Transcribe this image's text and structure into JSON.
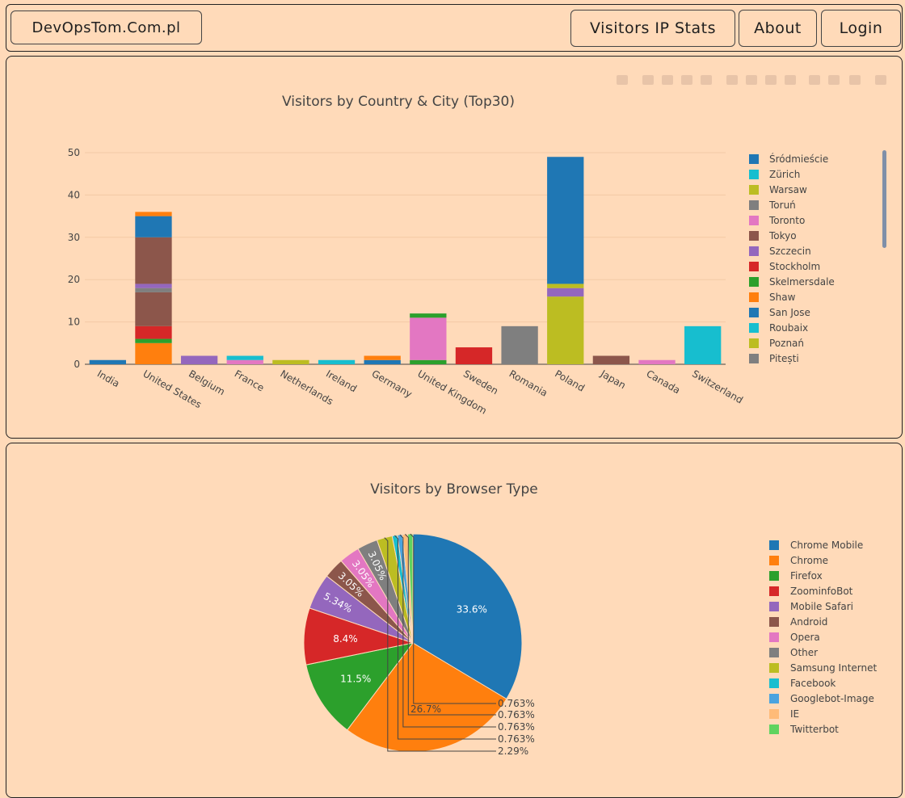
{
  "navbar": {
    "brand": "DevOpsTom.Com.pl",
    "links": [
      "Visitors IP Stats",
      "About",
      "Login"
    ]
  },
  "chart_data": [
    {
      "type": "bar",
      "stacked": true,
      "title": "Visitors by Country & City (Top30)",
      "xlabel": "",
      "ylabel": "",
      "ylim": [
        0,
        53
      ],
      "yticks": [
        0,
        10,
        20,
        30,
        40,
        50
      ],
      "grid": true,
      "legend_position": "right",
      "categories": [
        "India",
        "United States",
        "Belgium",
        "France",
        "Netherlands",
        "Ireland",
        "Germany",
        "United Kingdom",
        "Sweden",
        "Romania",
        "Poland",
        "Japan",
        "Canada",
        "Switzerland"
      ],
      "segments": [
        [
          [
            "#1f77b4",
            1
          ]
        ],
        [
          [
            "#ff7f0e",
            5
          ],
          [
            "#2ca02c",
            1
          ],
          [
            "#d62728",
            3
          ],
          [
            "#8c564b",
            8
          ],
          [
            "#7f7f7f",
            1
          ],
          [
            "#9467bd",
            1
          ],
          [
            "#8c564b",
            11
          ],
          [
            "#1f77b4",
            5
          ],
          [
            "#ff7f0e",
            1
          ]
        ],
        [
          [
            "#9467bd",
            2
          ]
        ],
        [
          [
            "#e377c2",
            1
          ],
          [
            "#17becf",
            1
          ]
        ],
        [
          [
            "#bcbd22",
            1
          ]
        ],
        [
          [
            "#17becf",
            1
          ]
        ],
        [
          [
            "#1f77b4",
            1
          ],
          [
            "#ff7f0e",
            1
          ]
        ],
        [
          [
            "#2ca02c",
            1
          ],
          [
            "#e377c2",
            10
          ],
          [
            "#2ca02c",
            1
          ]
        ],
        [
          [
            "#d62728",
            4
          ]
        ],
        [
          [
            "#7f7f7f",
            9
          ]
        ],
        [
          [
            "#bcbd22",
            16
          ],
          [
            "#9467bd",
            2
          ],
          [
            "#bcbd22",
            1
          ],
          [
            "#1f77b4",
            30
          ]
        ],
        [
          [
            "#8c564b",
            2
          ]
        ],
        [
          [
            "#e377c2",
            1
          ]
        ],
        [
          [
            "#17becf",
            9
          ]
        ]
      ],
      "legend": [
        {
          "name": "Śródmieście",
          "color": "#1f77b4"
        },
        {
          "name": "Zürich",
          "color": "#17becf"
        },
        {
          "name": "Warsaw",
          "color": "#bcbd22"
        },
        {
          "name": "Toruń",
          "color": "#7f7f7f"
        },
        {
          "name": "Toronto",
          "color": "#e377c2"
        },
        {
          "name": "Tokyo",
          "color": "#8c564b"
        },
        {
          "name": "Szczecin",
          "color": "#9467bd"
        },
        {
          "name": "Stockholm",
          "color": "#d62728"
        },
        {
          "name": "Skelmersdale",
          "color": "#2ca02c"
        },
        {
          "name": "Shaw",
          "color": "#ff7f0e"
        },
        {
          "name": "San Jose",
          "color": "#1f77b4"
        },
        {
          "name": "Roubaix",
          "color": "#17becf"
        },
        {
          "name": "Poznań",
          "color": "#bcbd22"
        },
        {
          "name": "Pitești",
          "color": "#7f7f7f"
        }
      ]
    },
    {
      "type": "pie",
      "title": "Visitors by Browser Type",
      "legend_position": "right",
      "labels": [
        "Chrome Mobile",
        "Chrome",
        "Firefox",
        "ZoominfoBot",
        "Mobile Safari",
        "Android",
        "Opera",
        "Other",
        "Samsung Internet",
        "Facebook",
        "Googlebot-Image",
        "IE",
        "Twitterbot"
      ],
      "values": [
        33.6,
        26.7,
        11.5,
        8.4,
        5.34,
        3.05,
        3.05,
        3.05,
        2.29,
        0.763,
        0.763,
        0.763,
        0.763
      ],
      "value_labels": [
        "33.6%",
        "26.7%",
        "11.5%",
        "8.4%",
        "5.34%",
        "3.05%",
        "3.05%",
        "3.05%",
        "2.29%",
        "0.763%",
        "0.763%",
        "0.763%",
        "0.763%"
      ],
      "colors": [
        "#1f77b4",
        "#ff7f0e",
        "#2ca02c",
        "#d62728",
        "#9467bd",
        "#8c564b",
        "#e377c2",
        "#7f7f7f",
        "#bcbd22",
        "#17becf",
        "#4aa3df",
        "#ffbb78",
        "#5fd35f"
      ]
    }
  ]
}
